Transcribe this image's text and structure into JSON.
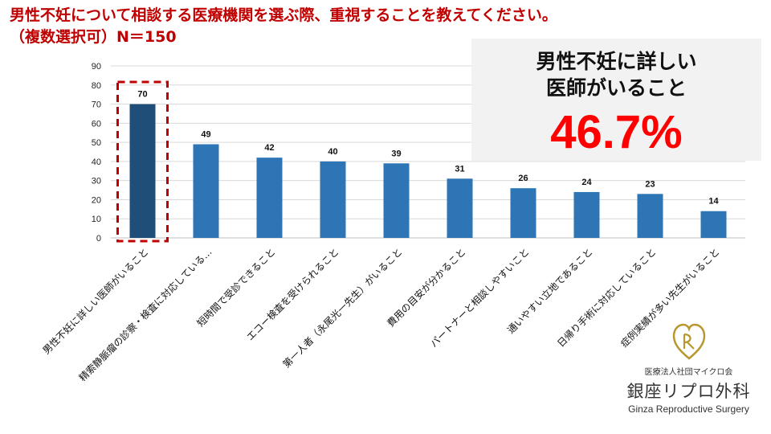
{
  "header": {
    "line1": "男性不妊について相談する医療機関を選ぶ際、重視することを教えてください。",
    "line2": "（複数選択可）N＝150"
  },
  "chart_data": {
    "type": "bar",
    "categories": [
      "男性不妊に詳しい医師がいること",
      "精索静脈瘤の診察・検査に対応している…",
      "短時間で受診できること",
      "エコー検査を受けられること",
      "第一人者（永尾光一先生）がいること",
      "費用の目安が分かること",
      "パートナーと相談しやすいこと",
      "通いやすい立地であること",
      "日帰り手術に対応していること",
      "症例実績が多い先生がいること"
    ],
    "values": [
      70,
      49,
      42,
      40,
      39,
      31,
      26,
      24,
      23,
      14
    ],
    "ylim": [
      0,
      90
    ],
    "yticks": [
      0,
      10,
      20,
      30,
      40,
      50,
      60,
      70,
      80,
      90
    ],
    "grid": true,
    "highlight_index": 0,
    "colors": {
      "bar": "#2e75b6",
      "highlight_bar": "#1f4e79",
      "highlight_box": "#c00000",
      "grid": "#d9d9d9"
    }
  },
  "callout": {
    "line1": "男性不妊に詳しい",
    "line2": "医師がいること",
    "percent": "46.7%"
  },
  "logo": {
    "org": "医療法人社団マイクロ会",
    "name_jp": "銀座リプロ外科",
    "name_en": "Ginza Reproductive Surgery"
  }
}
